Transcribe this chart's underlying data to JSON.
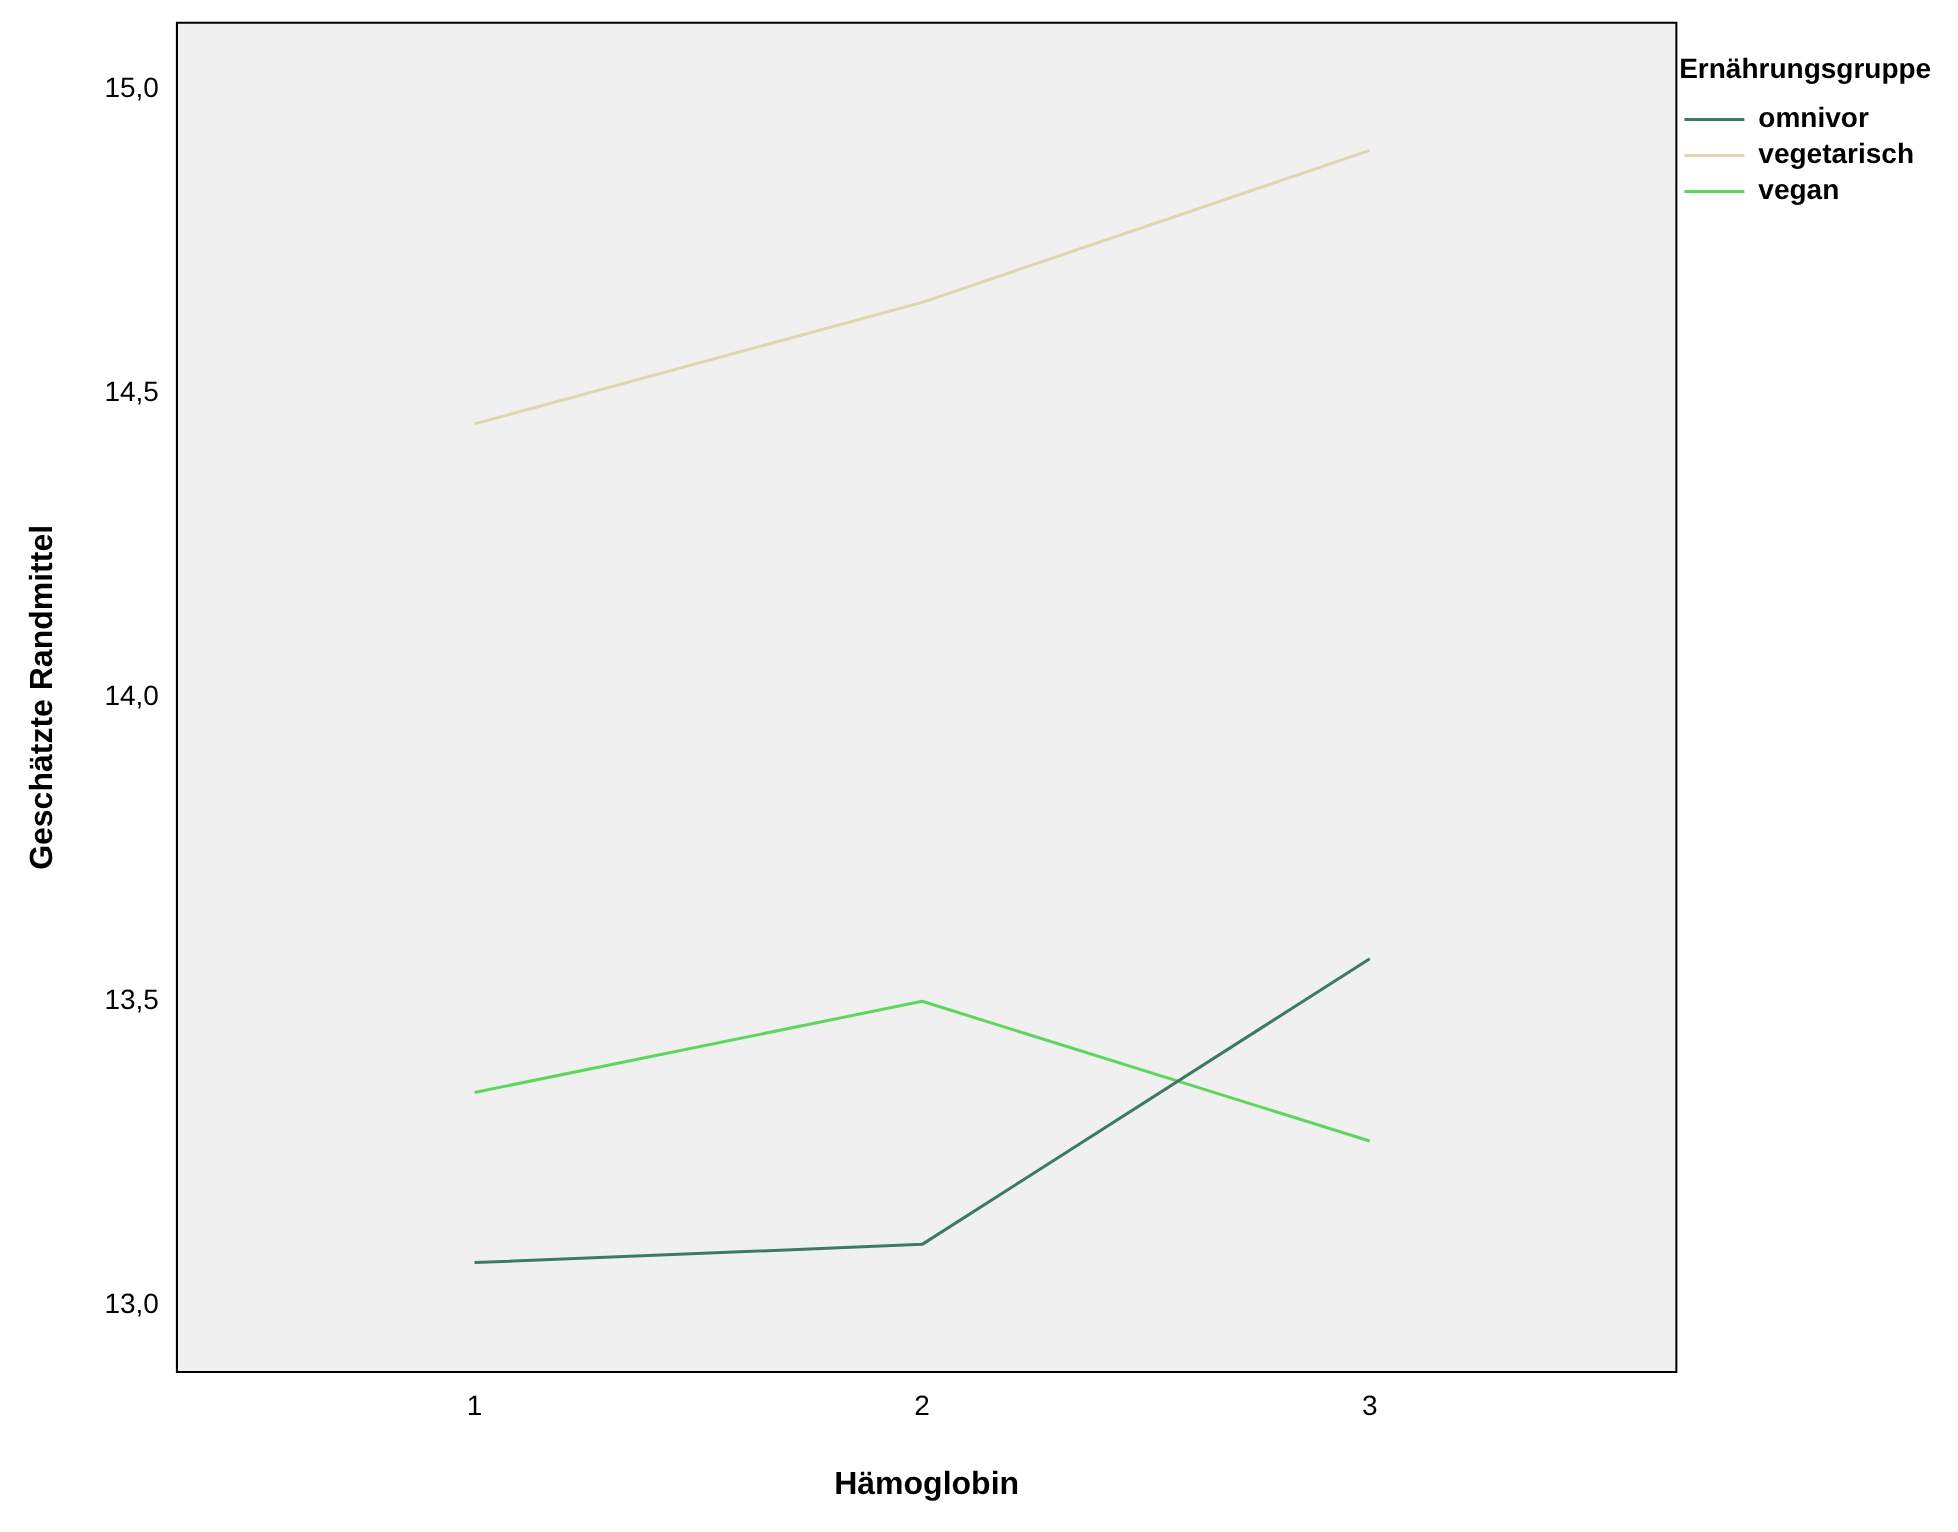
{
  "chart_data": {
    "type": "line",
    "xlabel": "Hämoglobin",
    "ylabel": "Geschätzte Randmittel",
    "legend_title": "Ernährungsgruppe",
    "categories": [
      "1",
      "2",
      "3"
    ],
    "series": [
      {
        "name": "omnivor",
        "color": "#3d7a63",
        "values": [
          13.07,
          13.1,
          13.57
        ]
      },
      {
        "name": "vegetarisch",
        "color": "#ddd6ae",
        "values": [
          14.45,
          14.65,
          14.9
        ]
      },
      {
        "name": "vegan",
        "color": "#5ed65e",
        "values": [
          13.35,
          13.5,
          13.27
        ]
      }
    ],
    "ylim": [
      12.89,
      15.11
    ],
    "yticks": [
      {
        "value": 13,
        "label": "13,0"
      },
      {
        "value": 13.5,
        "label": "13,5"
      },
      {
        "value": 14,
        "label": "14,0"
      },
      {
        "value": 14.5,
        "label": "14,5"
      },
      {
        "value": 15,
        "label": "15,0"
      }
    ],
    "grid": false,
    "legend": "top right",
    "marker": "none",
    "line_style": "solid"
  }
}
